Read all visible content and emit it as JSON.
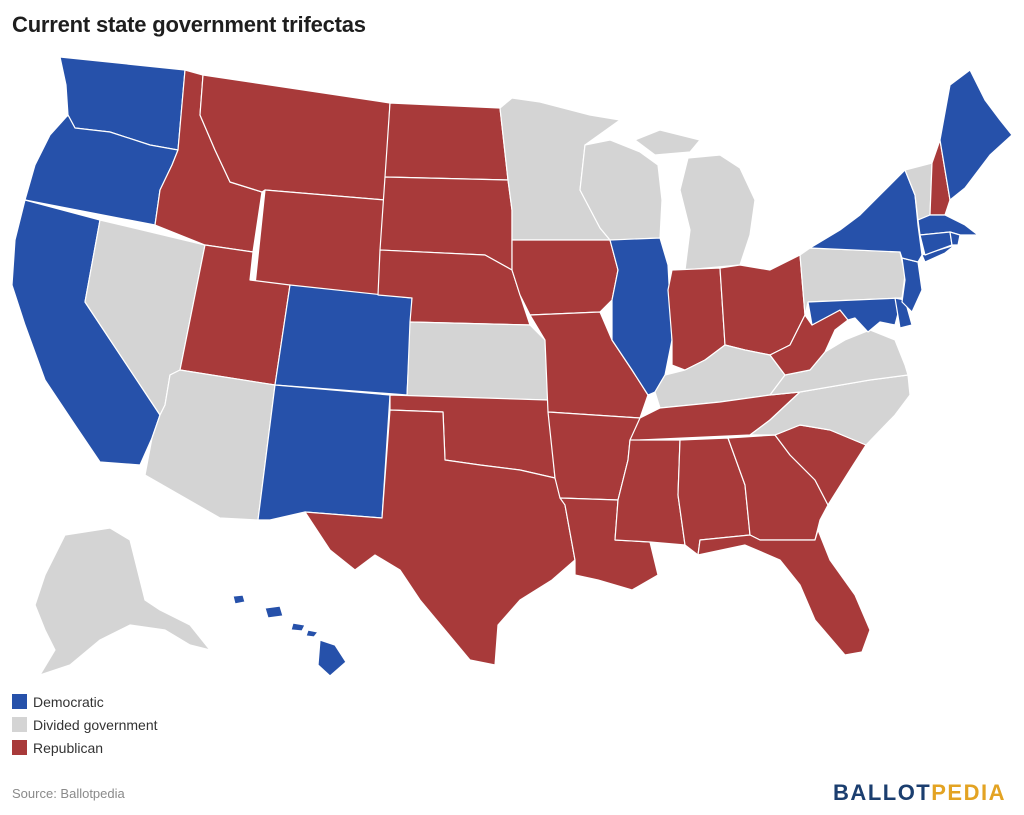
{
  "title": "Current state government trifectas",
  "colors": {
    "democratic": "#2651aa",
    "divided": "#d4d4d4",
    "republican": "#a83a3a"
  },
  "legend": [
    {
      "key": "democratic",
      "label": "Democratic"
    },
    {
      "key": "divided",
      "label": "Divided government"
    },
    {
      "key": "republican",
      "label": "Republican"
    }
  ],
  "source": "Source: Ballotpedia",
  "logo": {
    "part1": "BALLOT",
    "part2": "PEDIA"
  },
  "states": {
    "WA": "democratic",
    "OR": "democratic",
    "CA": "democratic",
    "NV": "divided",
    "ID": "republican",
    "MT": "republican",
    "WY": "republican",
    "UT": "republican",
    "AZ": "divided",
    "CO": "democratic",
    "NM": "democratic",
    "ND": "republican",
    "SD": "republican",
    "NE": "republican",
    "KS": "divided",
    "OK": "republican",
    "TX": "republican",
    "MN": "divided",
    "IA": "republican",
    "MO": "republican",
    "AR": "republican",
    "LA": "republican",
    "WI": "divided",
    "IL": "democratic",
    "MI": "divided",
    "IN": "republican",
    "OH": "republican",
    "KY": "divided",
    "TN": "republican",
    "MS": "republican",
    "AL": "republican",
    "GA": "republican",
    "FL": "republican",
    "SC": "republican",
    "NC": "divided",
    "VA": "divided",
    "WV": "republican",
    "PA": "divided",
    "NY": "democratic",
    "VT": "divided",
    "NH": "republican",
    "ME": "democratic",
    "MA": "democratic",
    "RI": "democratic",
    "CT": "democratic",
    "NJ": "democratic",
    "DE": "democratic",
    "MD": "democratic",
    "AK": "divided",
    "HI": "democratic"
  }
}
